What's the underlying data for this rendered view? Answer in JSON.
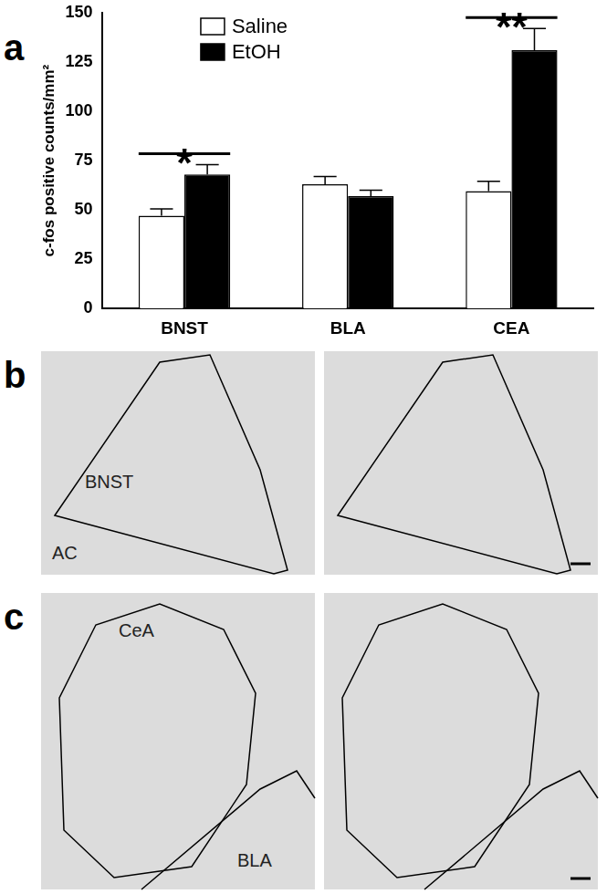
{
  "chart_data": {
    "type": "bar",
    "panel_label": "a",
    "y_label": "c-fos positive counts/mm²",
    "categories": [
      "BNST",
      "BLA",
      "CEA"
    ],
    "series": [
      {
        "name": "Saline",
        "color": "#ffffff",
        "values": [
          47,
          63,
          59.5
        ],
        "errors": [
          3.5,
          4,
          5
        ]
      },
      {
        "name": "EtOH",
        "color": "#000000",
        "values": [
          68,
          57,
          131
        ],
        "errors": [
          5,
          3,
          11
        ]
      }
    ],
    "ylim": [
      0,
      150
    ],
    "yticks": [
      0,
      25,
      50,
      75,
      100,
      125,
      150
    ],
    "grid": false,
    "legend": "top-left",
    "annotations": [
      {
        "text": "*",
        "category": "BNST"
      },
      {
        "text": "**",
        "category": "CEA"
      }
    ]
  },
  "micrographs": [
    {
      "panel_label": "b",
      "labels": [
        "BNST",
        "AC"
      ]
    },
    {
      "panel_label": "c",
      "labels": [
        "CeA",
        "BLA"
      ]
    }
  ]
}
